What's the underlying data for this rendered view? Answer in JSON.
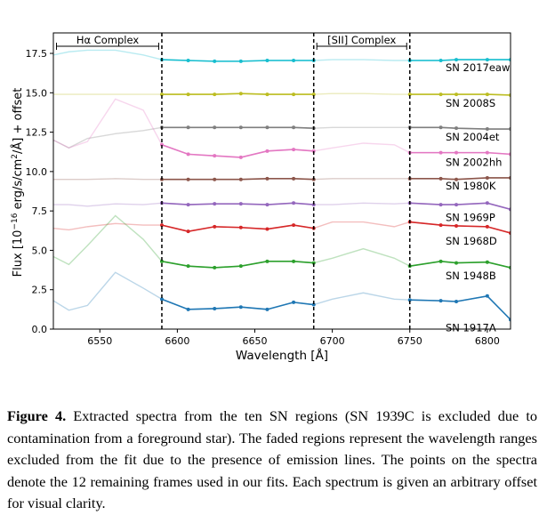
{
  "chart_data": {
    "type": "line",
    "xlabel": "Wavelength [Å]",
    "ylabel": "Flux [10",
    "ylabel_sup": "−16",
    "ylabel_rest": " erg/s/cm",
    "ylabel_sup2": "2",
    "ylabel_end": "/Å] + offset",
    "xlim": [
      6520,
      6815
    ],
    "ylim": [
      0,
      18.8
    ],
    "xticks": [
      6550,
      6600,
      6650,
      6700,
      6750,
      6800
    ],
    "yticks": [
      0.0,
      2.5,
      5.0,
      7.5,
      10.0,
      12.5,
      15.0,
      17.5
    ],
    "ytick_labels": [
      "0.0",
      "2.5",
      "5.0",
      "7.5",
      "10.0",
      "12.5",
      "15.0",
      "17.5"
    ],
    "dashed_lines": [
      6590,
      6688,
      6750
    ],
    "regions": [
      {
        "label": "Hα Complex",
        "x": [
          6522,
          6588
        ]
      },
      {
        "label": "[SII] Complex",
        "x": [
          6690,
          6748
        ]
      }
    ],
    "x": [
      6520,
      6530,
      6542,
      6560,
      6578,
      6590,
      6607,
      6624,
      6641,
      6658,
      6675,
      6688,
      6700,
      6720,
      6740,
      6750,
      6770,
      6780,
      6800,
      6815
    ],
    "fit_mask": [
      false,
      false,
      false,
      false,
      false,
      true,
      true,
      true,
      true,
      true,
      true,
      true,
      false,
      false,
      false,
      true,
      true,
      true,
      true,
      true
    ],
    "series": [
      {
        "name": "SN 2017eaw",
        "color": "#17becf",
        "values": [
          17.4,
          17.6,
          17.7,
          17.7,
          17.4,
          17.1,
          17.05,
          17.0,
          17.0,
          17.05,
          17.05,
          17.05,
          17.1,
          17.1,
          17.05,
          17.05,
          17.05,
          17.1,
          17.1,
          17.1
        ]
      },
      {
        "name": "SN 2008S",
        "color": "#bcbd22",
        "values": [
          14.9,
          14.9,
          14.9,
          14.9,
          14.9,
          14.9,
          14.9,
          14.9,
          14.95,
          14.9,
          14.9,
          14.9,
          14.95,
          14.95,
          14.9,
          14.9,
          14.9,
          14.9,
          14.9,
          14.85
        ]
      },
      {
        "name": "SN 2004et",
        "color": "#7f7f7f",
        "values": [
          12.0,
          11.5,
          12.1,
          12.4,
          12.6,
          12.8,
          12.8,
          12.8,
          12.8,
          12.8,
          12.8,
          12.75,
          12.8,
          12.8,
          12.8,
          12.8,
          12.8,
          12.75,
          12.7,
          12.7
        ]
      },
      {
        "name": "SN 2002hh",
        "color": "#e377c2",
        "values": [
          12.0,
          11.5,
          11.9,
          14.6,
          13.9,
          11.7,
          11.1,
          11.0,
          10.9,
          11.3,
          11.4,
          11.3,
          11.5,
          11.8,
          11.7,
          11.2,
          11.2,
          11.2,
          11.2,
          11.1
        ]
      },
      {
        "name": "SN 1980K",
        "color": "#8c564b",
        "values": [
          9.5,
          9.5,
          9.5,
          9.55,
          9.5,
          9.5,
          9.5,
          9.5,
          9.5,
          9.55,
          9.55,
          9.5,
          9.55,
          9.55,
          9.55,
          9.55,
          9.55,
          9.5,
          9.6,
          9.6
        ]
      },
      {
        "name": "SN 1969P",
        "color": "#9467bd",
        "values": [
          7.9,
          7.9,
          7.8,
          7.95,
          7.9,
          8.0,
          7.9,
          7.95,
          7.95,
          7.9,
          8.0,
          7.9,
          7.9,
          8.0,
          7.95,
          8.0,
          7.9,
          7.9,
          8.0,
          7.6
        ]
      },
      {
        "name": "SN 1968D",
        "color": "#d62728",
        "values": [
          6.4,
          6.3,
          6.5,
          6.7,
          6.6,
          6.6,
          6.2,
          6.5,
          6.45,
          6.35,
          6.6,
          6.4,
          6.8,
          6.8,
          6.5,
          6.8,
          6.6,
          6.55,
          6.5,
          6.1
        ]
      },
      {
        "name": "SN 1948B",
        "color": "#2ca02c",
        "values": [
          4.6,
          4.1,
          5.3,
          7.2,
          5.7,
          4.3,
          4.0,
          3.9,
          4.0,
          4.3,
          4.3,
          4.2,
          4.5,
          5.1,
          4.5,
          4.0,
          4.3,
          4.2,
          4.25,
          3.9
        ]
      },
      {
        "name": "SN 1917A",
        "color": "#1f77b4",
        "values": [
          1.8,
          1.2,
          1.5,
          3.6,
          2.6,
          1.9,
          1.25,
          1.3,
          1.4,
          1.25,
          1.7,
          1.55,
          1.9,
          2.3,
          1.9,
          1.85,
          1.8,
          1.75,
          2.1,
          0.6
        ]
      }
    ]
  },
  "caption": {
    "label": "Figure 4.",
    "text": " Extracted spectra from the ten SN regions (SN 1939C is excluded due to contamination from a foreground star). The faded regions represent the wavelength ranges excluded from the fit due to the presence of emission lines. The points on the spectra denote the 12 remaining frames used in our fits. Each spectrum is given an arbitrary offset for visual clarity."
  }
}
